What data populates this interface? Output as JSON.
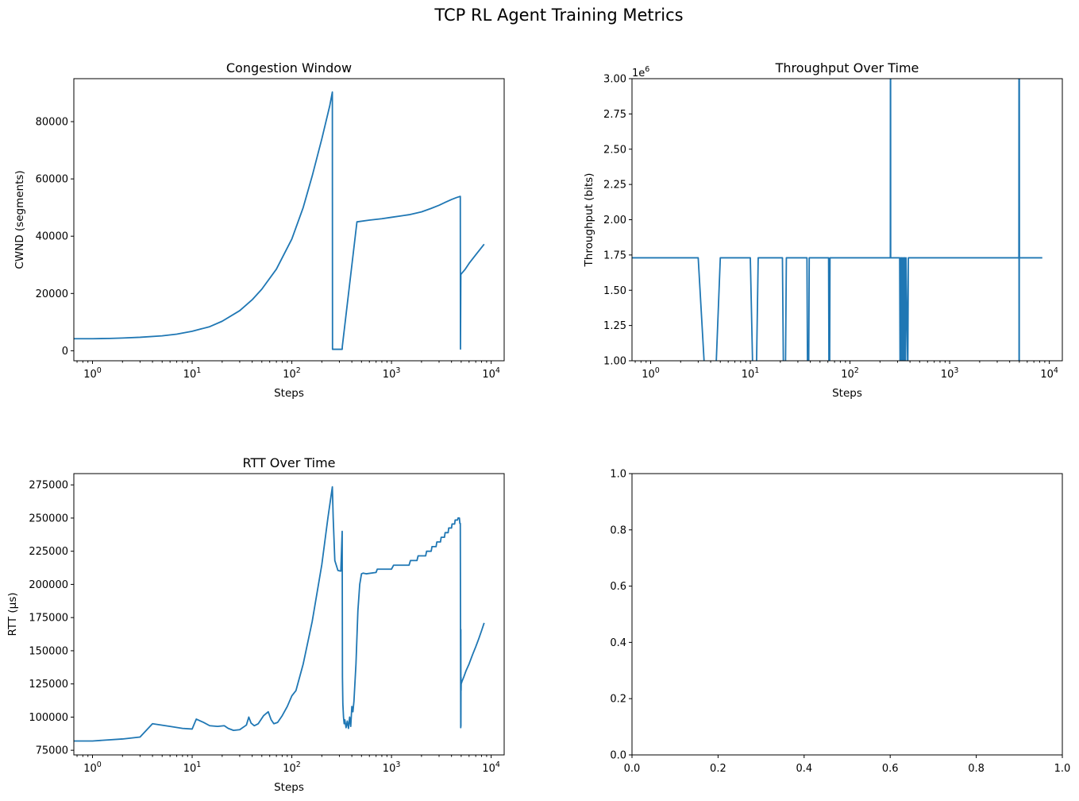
{
  "figure": {
    "title": "TCP RL Agent Training Metrics"
  },
  "chart_data": [
    {
      "type": "line",
      "title": "Congestion Window",
      "xlabel": "Steps",
      "ylabel": "CWND (segments)",
      "xscale": "log",
      "xlim": [
        0.65,
        13500
      ],
      "ylim": [
        -3500,
        95000
      ],
      "xticks": [
        {
          "value": 1,
          "base": "10",
          "exp": "0"
        },
        {
          "value": 10,
          "base": "10",
          "exp": "1"
        },
        {
          "value": 100,
          "base": "10",
          "exp": "2"
        },
        {
          "value": 1000,
          "base": "10",
          "exp": "3"
        },
        {
          "value": 10000,
          "base": "10",
          "exp": "4"
        }
      ],
      "yticks": [
        {
          "value": 0,
          "label": "0"
        },
        {
          "value": 20000,
          "label": "20000"
        },
        {
          "value": 40000,
          "label": "40000"
        },
        {
          "value": 60000,
          "label": "60000"
        },
        {
          "value": 80000,
          "label": "80000"
        }
      ],
      "grid": false,
      "series": [
        {
          "x": [
            0.65,
            1,
            1.5,
            2,
            3,
            5,
            7,
            10,
            15,
            20,
            30,
            40,
            50,
            70,
            100,
            130,
            160,
            200,
            240,
            255,
            256,
            320,
            321,
            450,
            600,
            800,
            1000,
            1500,
            2000,
            2500,
            3000,
            3500,
            4000,
            4500,
            4900,
            4920,
            4960,
            5000,
            5500,
            6000,
            7000,
            8500
          ],
          "y": [
            4200,
            4200,
            4300,
            4450,
            4700,
            5200,
            5800,
            6800,
            8400,
            10300,
            14000,
            17800,
            21500,
            28500,
            39000,
            50000,
            61000,
            74000,
            85500,
            90300,
            500,
            500,
            1500,
            45000,
            45600,
            46100,
            46600,
            47500,
            48500,
            49700,
            50800,
            51900,
            52800,
            53500,
            53900,
            600,
            26500,
            26800,
            28500,
            30500,
            33500,
            37200
          ]
        }
      ]
    },
    {
      "type": "line",
      "title": "Throughput Over Time",
      "xlabel": "Steps",
      "ylabel": "Throughput (bits)",
      "xscale": "log",
      "xlim": [
        0.65,
        13500
      ],
      "ylim": [
        1000000,
        3000000
      ],
      "offset_label": {
        "base": "1e",
        "exp": "6"
      },
      "xticks": [
        {
          "value": 1,
          "base": "10",
          "exp": "0"
        },
        {
          "value": 10,
          "base": "10",
          "exp": "1"
        },
        {
          "value": 100,
          "base": "10",
          "exp": "2"
        },
        {
          "value": 1000,
          "base": "10",
          "exp": "3"
        },
        {
          "value": 10000,
          "base": "10",
          "exp": "4"
        }
      ],
      "yticks": [
        {
          "value": 1000000,
          "label": "1.00"
        },
        {
          "value": 1250000,
          "label": "1.25"
        },
        {
          "value": 1500000,
          "label": "1.50"
        },
        {
          "value": 1750000,
          "label": "1.75"
        },
        {
          "value": 2000000,
          "label": "2.00"
        },
        {
          "value": 2250000,
          "label": "2.25"
        },
        {
          "value": 2500000,
          "label": "2.50"
        },
        {
          "value": 2750000,
          "label": "2.75"
        },
        {
          "value": 3000000,
          "label": "3.00"
        }
      ],
      "grid": false,
      "series": [
        {
          "x": [
            0.65,
            3,
            3.5,
            4.5,
            5,
            10,
            10.6,
            11.5,
            12,
            21,
            21.5,
            22.5,
            23,
            37,
            37.5,
            38.5,
            39,
            61,
            61.5,
            62.5,
            63,
            254,
            254.5,
            255.5,
            256,
            315,
            318,
            322,
            326,
            330,
            334,
            338,
            342,
            346,
            350,
            355,
            360,
            365,
            380,
            385,
            4950,
            4960,
            4970,
            4980,
            4990,
            5000,
            5010,
            8500
          ],
          "y": [
            1730000,
            1730000,
            900000,
            900000,
            1730000,
            1730000,
            900000,
            900000,
            1730000,
            1730000,
            900000,
            900000,
            1730000,
            1730000,
            900000,
            900000,
            1730000,
            1730000,
            900000,
            900000,
            1730000,
            1730000,
            3100000,
            3100000,
            1730000,
            1730000,
            900000,
            1730000,
            900000,
            1730000,
            900000,
            1730000,
            900000,
            1730000,
            900000,
            1730000,
            900000,
            1730000,
            900000,
            1730000,
            1730000,
            3100000,
            900000,
            3100000,
            900000,
            3100000,
            1730000,
            1730000
          ]
        }
      ]
    },
    {
      "type": "line",
      "title": "RTT Over Time",
      "xlabel": "Steps",
      "ylabel": "RTT (µs)",
      "xscale": "log",
      "xlim": [
        0.65,
        13500
      ],
      "ylim": [
        71500,
        283500
      ],
      "xticks": [
        {
          "value": 1,
          "base": "10",
          "exp": "0"
        },
        {
          "value": 10,
          "base": "10",
          "exp": "1"
        },
        {
          "value": 100,
          "base": "10",
          "exp": "2"
        },
        {
          "value": 1000,
          "base": "10",
          "exp": "3"
        },
        {
          "value": 10000,
          "base": "10",
          "exp": "4"
        }
      ],
      "yticks": [
        {
          "value": 75000,
          "label": "75000"
        },
        {
          "value": 100000,
          "label": "100000"
        },
        {
          "value": 125000,
          "label": "125000"
        },
        {
          "value": 150000,
          "label": "150000"
        },
        {
          "value": 175000,
          "label": "175000"
        },
        {
          "value": 200000,
          "label": "200000"
        },
        {
          "value": 225000,
          "label": "225000"
        },
        {
          "value": 250000,
          "label": "250000"
        },
        {
          "value": 275000,
          "label": "275000"
        }
      ],
      "grid": false,
      "series": [
        {
          "x": [
            0.65,
            1,
            2,
            3,
            4,
            6,
            8,
            10,
            11,
            13,
            15,
            18,
            21,
            23,
            26,
            30,
            35,
            37,
            39,
            42,
            46,
            52,
            58,
            62,
            66,
            72,
            80,
            90,
            100,
            110,
            130,
            160,
            200,
            230,
            255,
            260,
            270,
            290,
            310,
            320,
            322,
            325,
            330,
            335,
            340,
            350,
            360,
            370,
            380,
            390,
            400,
            410,
            420,
            440,
            460,
            480,
            500,
            520,
            560,
            700,
            720,
            1000,
            1050,
            1500,
            1550,
            1800,
            1850,
            2200,
            2250,
            2500,
            2550,
            2800,
            2850,
            3100,
            3150,
            3400,
            3450,
            3700,
            3750,
            4000,
            4050,
            4300,
            4350,
            4600,
            4650,
            4800,
            4850,
            4900,
            4950,
            4960,
            4970,
            4980,
            4990,
            5000,
            5100,
            5300,
            5600,
            6000,
            6500,
            7000,
            7500,
            8000,
            8500
          ],
          "y": [
            82000,
            82000,
            83500,
            85000,
            95000,
            93000,
            91500,
            91000,
            98500,
            96000,
            93500,
            93000,
            93500,
            91500,
            90000,
            90500,
            94000,
            100000,
            95500,
            93500,
            95000,
            101000,
            104000,
            98000,
            95000,
            96000,
            101000,
            108000,
            116000,
            120000,
            140000,
            172000,
            215000,
            250000,
            273500,
            250000,
            218000,
            210500,
            210000,
            240000,
            130000,
            110000,
            100000,
            95000,
            98000,
            92000,
            97000,
            91500,
            100000,
            93000,
            108000,
            104000,
            112000,
            140000,
            180000,
            200000,
            208000,
            208500,
            208000,
            209000,
            211500,
            211500,
            214500,
            214500,
            218000,
            218000,
            221500,
            221500,
            225000,
            225000,
            228500,
            228500,
            232000,
            232000,
            235500,
            235500,
            239000,
            239000,
            242500,
            242500,
            245500,
            245500,
            248500,
            248500,
            250000,
            250000,
            246000,
            246000,
            92000,
            166000,
            93000,
            130000,
            120000,
            125000,
            127000,
            130000,
            135000,
            140000,
            147000,
            153000,
            159000,
            165000,
            171000
          ]
        }
      ]
    },
    {
      "type": "line",
      "title": "",
      "xlabel": "",
      "ylabel": "",
      "xscale": "linear",
      "xlim": [
        0,
        1
      ],
      "ylim": [
        0,
        1
      ],
      "xticks": [
        {
          "value": 0,
          "label": "0.0"
        },
        {
          "value": 0.2,
          "label": "0.2"
        },
        {
          "value": 0.4,
          "label": "0.4"
        },
        {
          "value": 0.6,
          "label": "0.6"
        },
        {
          "value": 0.8,
          "label": "0.8"
        },
        {
          "value": 1,
          "label": "1.0"
        }
      ],
      "yticks": [
        {
          "value": 0,
          "label": "0.0"
        },
        {
          "value": 0.2,
          "label": "0.2"
        },
        {
          "value": 0.4,
          "label": "0.4"
        },
        {
          "value": 0.6,
          "label": "0.6"
        },
        {
          "value": 0.8,
          "label": "0.8"
        },
        {
          "value": 1,
          "label": "1.0"
        }
      ],
      "grid": false,
      "series": []
    }
  ]
}
